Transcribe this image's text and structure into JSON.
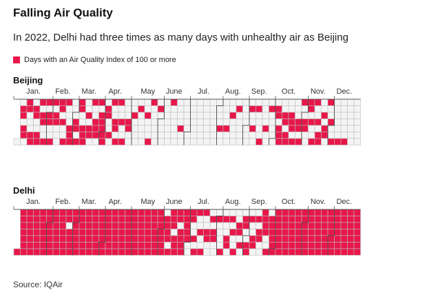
{
  "header": {
    "title": "Falling Air Quality",
    "subtitle": "In 2022, Delhi had three times as many days with unhealthy air as Beijing"
  },
  "legend": {
    "label": "Days with an Air Quality Index of 100 or more",
    "color": "#e8174a"
  },
  "colors": {
    "unhealthy": "#e8174a",
    "healthy": "#f4f4f4",
    "gridline": "#bdbdbd",
    "outline": "#555555"
  },
  "footer": {
    "source": "Source: IQAir"
  },
  "chart_data": [
    {
      "type": "heatmap",
      "title": "Beijing",
      "year": 2022,
      "months": [
        "Jan.",
        "Feb.",
        "Mar.",
        "Apr.",
        "May",
        "June",
        "Jul.",
        "Aug.",
        "Sep.",
        "Oct.",
        "Nov.",
        "Dec."
      ],
      "encoding": "rows[m] = 31 daily values for month m (Jan.–Dec.), 1 = AQI of 100 or more, 0 = below 100, unused days = 0",
      "rows": [
        [
          0,
          0,
          1,
          1,
          0,
          1,
          1,
          0,
          1,
          1,
          0,
          0,
          0,
          1,
          1,
          0,
          1,
          1,
          0,
          0,
          1,
          1,
          1,
          0,
          1,
          1,
          0,
          0,
          1,
          1,
          0
        ],
        [
          1,
          1,
          0,
          0,
          1,
          1,
          0,
          1,
          1,
          0,
          0,
          0,
          1,
          1,
          0,
          1,
          0,
          0,
          1,
          1,
          0,
          0,
          0,
          1,
          1,
          1,
          0,
          0,
          0,
          0,
          0
        ],
        [
          0,
          1,
          1,
          0,
          1,
          1,
          1,
          0,
          0,
          1,
          1,
          1,
          0,
          0,
          1,
          0,
          1,
          1,
          0,
          1,
          0,
          0,
          1,
          1,
          1,
          0,
          1,
          0,
          1,
          1,
          1
        ],
        [
          1,
          1,
          0,
          1,
          1,
          0,
          0,
          1,
          0,
          1,
          0,
          0,
          1,
          1,
          0,
          1,
          1,
          0,
          0,
          1,
          0,
          0,
          1,
          0,
          0,
          0,
          1,
          1,
          0,
          0,
          0
        ],
        [
          0,
          0,
          1,
          0,
          0,
          0,
          0,
          0,
          1,
          0,
          0,
          0,
          0,
          0,
          0,
          0,
          1,
          0,
          0,
          0,
          1,
          1,
          0,
          0,
          0,
          0,
          0,
          0,
          0,
          1,
          0
        ],
        [
          0,
          0,
          0,
          0,
          0,
          0,
          0,
          0,
          0,
          0,
          0,
          1,
          0,
          0,
          0,
          0,
          0,
          0,
          0,
          0,
          0,
          0,
          1,
          0,
          0,
          0,
          0,
          0,
          0,
          0,
          0
        ],
        [
          0,
          0,
          0,
          0,
          0,
          0,
          0,
          0,
          0,
          0,
          0,
          0,
          0,
          0,
          0,
          0,
          0,
          0,
          0,
          0,
          0,
          0,
          0,
          0,
          0,
          0,
          0,
          0,
          0,
          0,
          0
        ],
        [
          0,
          0,
          0,
          1,
          0,
          0,
          0,
          0,
          0,
          0,
          1,
          0,
          0,
          0,
          0,
          1,
          0,
          0,
          0,
          0,
          0,
          1,
          0,
          0,
          0,
          0,
          0,
          0,
          0,
          0,
          0
        ],
        [
          0,
          0,
          0,
          0,
          1,
          0,
          0,
          1,
          0,
          0,
          0,
          1,
          0,
          0,
          0,
          0,
          1,
          0,
          0,
          0,
          0,
          1,
          0,
          0,
          0,
          1,
          0,
          0,
          0,
          0,
          0
        ],
        [
          0,
          0,
          1,
          1,
          0,
          1,
          1,
          1,
          0,
          0,
          1,
          1,
          0,
          1,
          1,
          0,
          0,
          1,
          1,
          1,
          0,
          1,
          0,
          0,
          0,
          1,
          1,
          0,
          1,
          1,
          0
        ],
        [
          0,
          1,
          1,
          0,
          0,
          1,
          1,
          0,
          1,
          0,
          0,
          1,
          1,
          0,
          0,
          1,
          0,
          1,
          1,
          0,
          0,
          1,
          0,
          1,
          1,
          0,
          1,
          0,
          0,
          1,
          0
        ],
        [
          0,
          0,
          1,
          0,
          0,
          0,
          0,
          0,
          0,
          1,
          0,
          0,
          0,
          0,
          0,
          0,
          1,
          0,
          0,
          0,
          0,
          0,
          0,
          0,
          0,
          0,
          0,
          0,
          0,
          0,
          0
        ]
      ]
    },
    {
      "type": "heatmap",
      "title": "Delhi",
      "year": 2022,
      "months": [
        "Jan.",
        "Feb.",
        "Mar.",
        "Apr.",
        "May",
        "June",
        "Jul.",
        "Aug.",
        "Sep.",
        "Oct.",
        "Nov.",
        "Dec."
      ],
      "encoding": "rows[m] = 31 daily values for month m (Jan.–Dec.), 1 = AQI of 100 or more, 0 = below 100, unused days = 0",
      "rows": [
        [
          1,
          1,
          1,
          1,
          1,
          1,
          1,
          1,
          1,
          1,
          1,
          1,
          1,
          1,
          1,
          1,
          1,
          1,
          1,
          1,
          1,
          1,
          1,
          1,
          1,
          1,
          1,
          1,
          1,
          1,
          1
        ],
        [
          1,
          1,
          1,
          1,
          1,
          1,
          1,
          1,
          1,
          1,
          1,
          1,
          1,
          1,
          1,
          1,
          1,
          1,
          1,
          1,
          1,
          0,
          1,
          1,
          1,
          1,
          1,
          1,
          0,
          0,
          0
        ],
        [
          1,
          1,
          1,
          1,
          1,
          1,
          1,
          1,
          1,
          1,
          1,
          1,
          1,
          1,
          1,
          1,
          1,
          1,
          1,
          1,
          1,
          1,
          1,
          1,
          1,
          1,
          1,
          1,
          1,
          1,
          1
        ],
        [
          1,
          1,
          1,
          1,
          1,
          1,
          1,
          1,
          1,
          1,
          1,
          1,
          1,
          1,
          1,
          1,
          1,
          1,
          1,
          1,
          1,
          1,
          1,
          1,
          1,
          1,
          1,
          1,
          1,
          1,
          0
        ],
        [
          1,
          1,
          1,
          1,
          1,
          1,
          1,
          1,
          1,
          1,
          1,
          1,
          1,
          1,
          1,
          1,
          1,
          1,
          1,
          1,
          1,
          1,
          1,
          1,
          1,
          1,
          1,
          1,
          1,
          1,
          1
        ],
        [
          1,
          1,
          1,
          1,
          0,
          1,
          1,
          1,
          1,
          0,
          1,
          1,
          1,
          1,
          0,
          1,
          1,
          1,
          1,
          1,
          0,
          1,
          1,
          1,
          1,
          1,
          1,
          1,
          1,
          1,
          0
        ],
        [
          0,
          0,
          1,
          1,
          0,
          0,
          1,
          0,
          1,
          1,
          0,
          0,
          1,
          0,
          0,
          1,
          1,
          0,
          0,
          1,
          1,
          0,
          0,
          0,
          1,
          0,
          1,
          1,
          0,
          0,
          0
        ],
        [
          1,
          0,
          0,
          0,
          0,
          1,
          0,
          1,
          0,
          0,
          1,
          1,
          0,
          0,
          1,
          0,
          1,
          0,
          0,
          1,
          0,
          0,
          1,
          1,
          0,
          1,
          0,
          0,
          1,
          1,
          0
        ],
        [
          0,
          1,
          1,
          0,
          1,
          0,
          0,
          1,
          1,
          0,
          0,
          1,
          0,
          1,
          1,
          0,
          0,
          1,
          1,
          1,
          1,
          0,
          0,
          1,
          0,
          1,
          1,
          1,
          1,
          1,
          0
        ],
        [
          1,
          1,
          1,
          1,
          1,
          1,
          1,
          1,
          1,
          1,
          1,
          1,
          1,
          1,
          1,
          1,
          1,
          1,
          1,
          1,
          1,
          1,
          1,
          1,
          1,
          1,
          1,
          1,
          1,
          1,
          1
        ],
        [
          1,
          1,
          1,
          1,
          1,
          1,
          1,
          1,
          1,
          1,
          1,
          1,
          1,
          1,
          1,
          1,
          1,
          1,
          1,
          1,
          1,
          1,
          1,
          1,
          1,
          1,
          1,
          1,
          1,
          1,
          0
        ],
        [
          1,
          1,
          1,
          1,
          1,
          1,
          1,
          1,
          1,
          1,
          1,
          1,
          1,
          1,
          1,
          1,
          1,
          1,
          1,
          1,
          1,
          1,
          1,
          1,
          1,
          1,
          1,
          1,
          1,
          1,
          1
        ]
      ]
    }
  ]
}
